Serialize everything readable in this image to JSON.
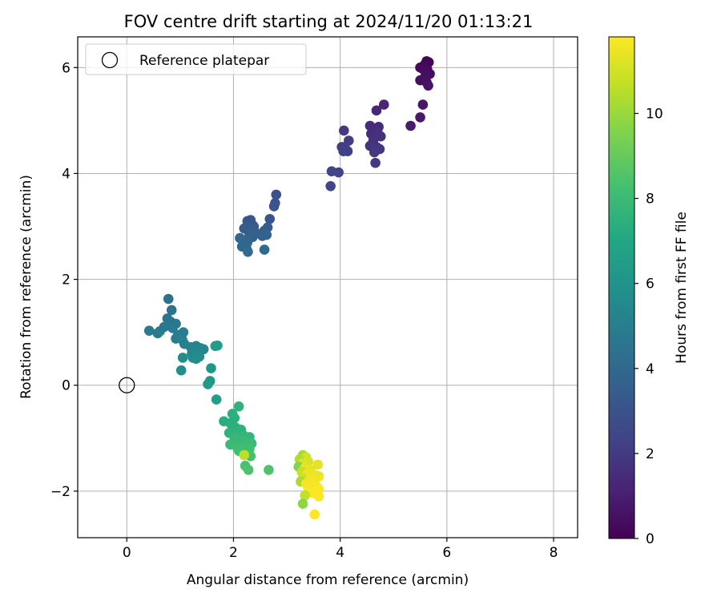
{
  "chart_data": {
    "type": "scatter",
    "title": "FOV centre drift starting at 2024/11/20 01:13:21",
    "xlabel": "Angular distance from reference (arcmin)",
    "ylabel": "Rotation from reference (arcmin)",
    "xlim": [
      -0.92,
      8.45
    ],
    "ylim": [
      -2.88,
      6.58
    ],
    "xticks": [
      0,
      2,
      4,
      6,
      8
    ],
    "yticks": [
      -2,
      0,
      2,
      4,
      6
    ],
    "xtick_labels": [
      "0",
      "2",
      "4",
      "6",
      "8"
    ],
    "ytick_labels": [
      "−2",
      "0",
      "2",
      "4",
      "6"
    ],
    "grid": true,
    "legend": {
      "placement": "top-left",
      "label": "Reference platepar"
    },
    "reference_point": {
      "x": 0,
      "y": 0
    },
    "colorbar": {
      "label": "Hours from first FF file",
      "colormap": "viridis",
      "range": [
        0,
        11.8
      ],
      "ticks": [
        0,
        2,
        4,
        6,
        8,
        10
      ],
      "tick_labels": [
        "0",
        "2",
        "4",
        "6",
        "8",
        "10"
      ]
    },
    "points": [
      {
        "x": 5.62,
        "y": 6.12,
        "c": 0.1
      },
      {
        "x": 5.66,
        "y": 6.1,
        "c": 0.15
      },
      {
        "x": 5.58,
        "y": 6.05,
        "c": 0.2
      },
      {
        "x": 5.5,
        "y": 6.0,
        "c": 0.25
      },
      {
        "x": 5.54,
        "y": 5.98,
        "c": 0.3
      },
      {
        "x": 5.63,
        "y": 5.97,
        "c": 0.35
      },
      {
        "x": 5.68,
        "y": 5.88,
        "c": 0.4
      },
      {
        "x": 5.6,
        "y": 5.85,
        "c": 0.45
      },
      {
        "x": 5.5,
        "y": 5.76,
        "c": 0.5
      },
      {
        "x": 5.62,
        "y": 5.72,
        "c": 0.55
      },
      {
        "x": 5.65,
        "y": 5.66,
        "c": 0.6
      },
      {
        "x": 5.55,
        "y": 5.3,
        "c": 0.7
      },
      {
        "x": 5.5,
        "y": 5.06,
        "c": 0.8
      },
      {
        "x": 5.32,
        "y": 4.9,
        "c": 0.9
      },
      {
        "x": 4.82,
        "y": 5.3,
        "c": 1.2
      },
      {
        "x": 4.68,
        "y": 5.19,
        "c": 1.3
      },
      {
        "x": 4.56,
        "y": 4.9,
        "c": 1.4
      },
      {
        "x": 4.72,
        "y": 4.88,
        "c": 1.45
      },
      {
        "x": 4.64,
        "y": 4.84,
        "c": 1.5
      },
      {
        "x": 4.58,
        "y": 4.75,
        "c": 1.55
      },
      {
        "x": 4.7,
        "y": 4.78,
        "c": 1.6
      },
      {
        "x": 4.76,
        "y": 4.7,
        "c": 1.65
      },
      {
        "x": 4.62,
        "y": 4.62,
        "c": 1.7
      },
      {
        "x": 4.56,
        "y": 4.52,
        "c": 1.75
      },
      {
        "x": 4.68,
        "y": 4.5,
        "c": 1.8
      },
      {
        "x": 4.74,
        "y": 4.46,
        "c": 1.85
      },
      {
        "x": 4.64,
        "y": 4.4,
        "c": 1.9
      },
      {
        "x": 4.66,
        "y": 4.2,
        "c": 1.95
      },
      {
        "x": 4.07,
        "y": 4.81,
        "c": 2.0
      },
      {
        "x": 4.16,
        "y": 4.62,
        "c": 2.1
      },
      {
        "x": 4.03,
        "y": 4.5,
        "c": 2.15
      },
      {
        "x": 4.1,
        "y": 4.46,
        "c": 2.2
      },
      {
        "x": 4.06,
        "y": 4.42,
        "c": 2.25
      },
      {
        "x": 4.14,
        "y": 4.42,
        "c": 2.3
      },
      {
        "x": 3.97,
        "y": 4.02,
        "c": 2.4
      },
      {
        "x": 3.84,
        "y": 4.04,
        "c": 2.45
      },
      {
        "x": 3.82,
        "y": 3.76,
        "c": 2.5
      },
      {
        "x": 2.8,
        "y": 3.6,
        "c": 2.9
      },
      {
        "x": 2.78,
        "y": 3.44,
        "c": 3.0
      },
      {
        "x": 2.76,
        "y": 3.38,
        "c": 3.05
      },
      {
        "x": 2.68,
        "y": 3.14,
        "c": 3.1
      },
      {
        "x": 2.32,
        "y": 3.12,
        "c": 3.15
      },
      {
        "x": 2.26,
        "y": 3.1,
        "c": 3.2
      },
      {
        "x": 2.34,
        "y": 3.05,
        "c": 3.25
      },
      {
        "x": 2.38,
        "y": 3.0,
        "c": 3.3
      },
      {
        "x": 2.28,
        "y": 2.98,
        "c": 3.35
      },
      {
        "x": 2.2,
        "y": 2.96,
        "c": 3.4
      },
      {
        "x": 2.64,
        "y": 2.98,
        "c": 3.45
      },
      {
        "x": 2.58,
        "y": 2.92,
        "c": 3.5
      },
      {
        "x": 2.4,
        "y": 2.9,
        "c": 3.55
      },
      {
        "x": 2.3,
        "y": 2.85,
        "c": 3.6
      },
      {
        "x": 2.54,
        "y": 2.82,
        "c": 3.65
      },
      {
        "x": 2.62,
        "y": 2.84,
        "c": 3.7
      },
      {
        "x": 2.36,
        "y": 2.8,
        "c": 3.75
      },
      {
        "x": 2.12,
        "y": 2.78,
        "c": 3.8
      },
      {
        "x": 2.18,
        "y": 2.74,
        "c": 3.85
      },
      {
        "x": 2.26,
        "y": 2.7,
        "c": 3.9
      },
      {
        "x": 2.16,
        "y": 2.62,
        "c": 3.95
      },
      {
        "x": 2.24,
        "y": 2.6,
        "c": 4.0
      },
      {
        "x": 2.58,
        "y": 2.56,
        "c": 4.05
      },
      {
        "x": 2.27,
        "y": 2.52,
        "c": 4.1
      },
      {
        "x": 0.78,
        "y": 1.63,
        "c": 4.4
      },
      {
        "x": 0.84,
        "y": 1.42,
        "c": 4.5
      },
      {
        "x": 0.76,
        "y": 1.26,
        "c": 4.55
      },
      {
        "x": 0.82,
        "y": 1.2,
        "c": 4.6
      },
      {
        "x": 0.92,
        "y": 1.16,
        "c": 4.65
      },
      {
        "x": 0.7,
        "y": 1.1,
        "c": 4.7
      },
      {
        "x": 0.86,
        "y": 1.08,
        "c": 4.75
      },
      {
        "x": 0.62,
        "y": 1.02,
        "c": 4.8
      },
      {
        "x": 0.42,
        "y": 1.03,
        "c": 4.85
      },
      {
        "x": 0.58,
        "y": 0.98,
        "c": 4.9
      },
      {
        "x": 1.06,
        "y": 1.0,
        "c": 4.95
      },
      {
        "x": 0.96,
        "y": 0.95,
        "c": 5.0
      },
      {
        "x": 0.92,
        "y": 0.88,
        "c": 5.05
      },
      {
        "x": 1.04,
        "y": 0.86,
        "c": 5.1
      },
      {
        "x": 1.08,
        "y": 0.78,
        "c": 5.15
      },
      {
        "x": 1.2,
        "y": 0.72,
        "c": 5.2
      },
      {
        "x": 1.3,
        "y": 0.74,
        "c": 5.25
      },
      {
        "x": 1.26,
        "y": 0.66,
        "c": 5.3
      },
      {
        "x": 1.38,
        "y": 0.7,
        "c": 5.35
      },
      {
        "x": 1.44,
        "y": 0.68,
        "c": 5.4
      },
      {
        "x": 1.22,
        "y": 0.6,
        "c": 5.45
      },
      {
        "x": 1.32,
        "y": 0.58,
        "c": 5.5
      },
      {
        "x": 1.36,
        "y": 0.54,
        "c": 5.55
      },
      {
        "x": 1.24,
        "y": 0.52,
        "c": 5.6
      },
      {
        "x": 1.3,
        "y": 0.5,
        "c": 5.65
      },
      {
        "x": 1.05,
        "y": 0.52,
        "c": 5.7
      },
      {
        "x": 1.02,
        "y": 0.28,
        "c": 5.8
      },
      {
        "x": 1.7,
        "y": 0.75,
        "c": 6.5
      },
      {
        "x": 1.66,
        "y": 0.74,
        "c": 6.55
      },
      {
        "x": 1.58,
        "y": 0.32,
        "c": 6.2
      },
      {
        "x": 1.56,
        "y": 0.08,
        "c": 6.3
      },
      {
        "x": 1.52,
        "y": 0.02,
        "c": 6.35
      },
      {
        "x": 1.68,
        "y": -0.27,
        "c": 6.6
      },
      {
        "x": 2.1,
        "y": -0.4,
        "c": 7.6
      },
      {
        "x": 1.98,
        "y": -0.54,
        "c": 7.4
      },
      {
        "x": 2.02,
        "y": -0.62,
        "c": 7.45
      },
      {
        "x": 1.82,
        "y": -0.68,
        "c": 7.3
      },
      {
        "x": 1.94,
        "y": -0.72,
        "c": 7.35
      },
      {
        "x": 2.04,
        "y": -0.8,
        "c": 7.5
      },
      {
        "x": 2.14,
        "y": -0.84,
        "c": 7.55
      },
      {
        "x": 1.92,
        "y": -0.9,
        "c": 7.6
      },
      {
        "x": 2.08,
        "y": -0.92,
        "c": 7.65
      },
      {
        "x": 2.18,
        "y": -0.94,
        "c": 7.7
      },
      {
        "x": 2.3,
        "y": -0.98,
        "c": 7.75
      },
      {
        "x": 2.02,
        "y": -1.0,
        "c": 7.8
      },
      {
        "x": 2.12,
        "y": -1.04,
        "c": 7.85
      },
      {
        "x": 2.24,
        "y": -1.06,
        "c": 7.9
      },
      {
        "x": 2.34,
        "y": -1.1,
        "c": 7.95
      },
      {
        "x": 1.94,
        "y": -1.12,
        "c": 8.0
      },
      {
        "x": 2.06,
        "y": -1.16,
        "c": 8.05
      },
      {
        "x": 2.2,
        "y": -1.18,
        "c": 8.1
      },
      {
        "x": 2.3,
        "y": -1.2,
        "c": 8.15
      },
      {
        "x": 2.1,
        "y": -1.24,
        "c": 8.2
      },
      {
        "x": 2.24,
        "y": -1.3,
        "c": 8.25
      },
      {
        "x": 2.32,
        "y": -1.34,
        "c": 8.3
      },
      {
        "x": 2.22,
        "y": -1.52,
        "c": 8.4
      },
      {
        "x": 2.28,
        "y": -1.6,
        "c": 8.45
      },
      {
        "x": 2.66,
        "y": -1.6,
        "c": 8.5
      },
      {
        "x": 2.2,
        "y": -1.32,
        "c": 10.6
      },
      {
        "x": 3.3,
        "y": -1.32,
        "c": 10.2
      },
      {
        "x": 3.36,
        "y": -1.36,
        "c": 11.0
      },
      {
        "x": 3.24,
        "y": -1.4,
        "c": 10.4
      },
      {
        "x": 3.4,
        "y": -1.44,
        "c": 11.1
      },
      {
        "x": 3.3,
        "y": -1.48,
        "c": 11.2
      },
      {
        "x": 3.58,
        "y": -1.5,
        "c": 11.3
      },
      {
        "x": 3.22,
        "y": -1.54,
        "c": 9.6
      },
      {
        "x": 3.34,
        "y": -1.56,
        "c": 11.35
      },
      {
        "x": 3.44,
        "y": -1.6,
        "c": 11.4
      },
      {
        "x": 3.28,
        "y": -1.64,
        "c": 10.8
      },
      {
        "x": 3.38,
        "y": -1.68,
        "c": 11.45
      },
      {
        "x": 3.54,
        "y": -1.7,
        "c": 11.5
      },
      {
        "x": 3.6,
        "y": -1.72,
        "c": 11.55
      },
      {
        "x": 3.3,
        "y": -1.76,
        "c": 10.9
      },
      {
        "x": 3.44,
        "y": -1.78,
        "c": 11.6
      },
      {
        "x": 3.52,
        "y": -1.8,
        "c": 11.62
      },
      {
        "x": 3.26,
        "y": -1.82,
        "c": 10.3
      },
      {
        "x": 3.36,
        "y": -1.86,
        "c": 11.65
      },
      {
        "x": 3.46,
        "y": -1.9,
        "c": 11.68
      },
      {
        "x": 3.56,
        "y": -1.92,
        "c": 11.7
      },
      {
        "x": 3.6,
        "y": -1.96,
        "c": 11.72
      },
      {
        "x": 3.4,
        "y": -2.0,
        "c": 11.74
      },
      {
        "x": 3.5,
        "y": -2.04,
        "c": 11.75
      },
      {
        "x": 3.34,
        "y": -2.08,
        "c": 10.7
      },
      {
        "x": 3.6,
        "y": -2.1,
        "c": 11.76
      },
      {
        "x": 3.3,
        "y": -2.24,
        "c": 9.8
      },
      {
        "x": 3.52,
        "y": -2.44,
        "c": 11.8
      }
    ]
  }
}
